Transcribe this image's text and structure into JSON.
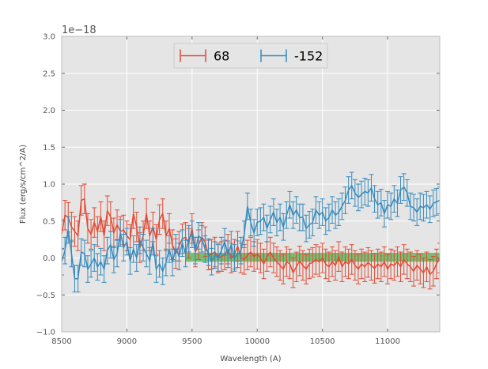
{
  "chart_data": {
    "type": "line",
    "xlabel": "Wavelength (A)",
    "ylabel": "Flux (erg/s/cm^2/A)",
    "y_offset_label": "1e−18",
    "y_scale": 1e-18,
    "xlim": [
      8500,
      11400
    ],
    "ylim": [
      -1.0,
      3.0
    ],
    "x_ticks": [
      8500,
      9000,
      9500,
      10000,
      10500,
      11000
    ],
    "x_tick_labels": [
      "8500",
      "9000",
      "9500",
      "10000",
      "10500",
      "11000"
    ],
    "y_ticks": [
      -1.0,
      -0.5,
      0.0,
      0.5,
      1.0,
      1.5,
      2.0,
      2.5,
      3.0
    ],
    "y_tick_labels": [
      "−1.0",
      "−0.5",
      "0.0",
      "0.5",
      "1.0",
      "1.5",
      "2.0",
      "2.5",
      "3.0"
    ],
    "grid": true,
    "background": "#e5e5e5",
    "legend_placement": "top-center",
    "band": {
      "x0": 9450,
      "x1": 11400,
      "y0": -0.05,
      "y1": 0.07,
      "color": "#4daf4a"
    },
    "series": [
      {
        "name": "68",
        "color": "#e24a33",
        "x": [
          8500,
          8525,
          8550,
          8575,
          8600,
          8625,
          8650,
          8675,
          8700,
          8725,
          8750,
          8775,
          8800,
          8825,
          8850,
          8875,
          8900,
          8925,
          8950,
          8975,
          9000,
          9025,
          9050,
          9075,
          9100,
          9125,
          9150,
          9175,
          9200,
          9225,
          9250,
          9275,
          9300,
          9325,
          9350,
          9375,
          9400,
          9425,
          9450,
          9475,
          9500,
          9525,
          9550,
          9575,
          9600,
          9625,
          9650,
          9675,
          9700,
          9725,
          9750,
          9775,
          9800,
          9825,
          9850,
          9875,
          9900,
          9925,
          9950,
          9975,
          10000,
          10025,
          10050,
          10075,
          10100,
          10125,
          10150,
          10175,
          10200,
          10225,
          10250,
          10275,
          10300,
          10325,
          10350,
          10375,
          10400,
          10425,
          10450,
          10475,
          10500,
          10525,
          10550,
          10575,
          10600,
          10625,
          10650,
          10675,
          10700,
          10725,
          10750,
          10775,
          10800,
          10825,
          10850,
          10875,
          10900,
          10925,
          10950,
          10975,
          11000,
          11025,
          11050,
          11075,
          11100,
          11125,
          11150,
          11175,
          11200,
          11225,
          11250,
          11275,
          11300,
          11325,
          11350,
          11375,
          11400
        ],
        "y": [
          0.32,
          0.58,
          0.55,
          0.42,
          0.36,
          0.3,
          0.78,
          0.8,
          0.4,
          0.32,
          0.48,
          0.36,
          0.56,
          0.3,
          0.64,
          0.56,
          0.34,
          0.45,
          0.36,
          0.38,
          0.3,
          0.25,
          0.6,
          0.42,
          0.14,
          0.3,
          0.6,
          0.3,
          0.42,
          0.25,
          0.52,
          0.6,
          0.3,
          0.4,
          0.18,
          0.06,
          0.16,
          0.26,
          0.28,
          0.2,
          0.4,
          0.08,
          0.18,
          0.28,
          0.22,
          0.04,
          0.05,
          0.08,
          0.0,
          0.02,
          0.04,
          0.12,
          0.0,
          0.05,
          0.16,
          0.0,
          -0.02,
          0.04,
          0.08,
          0.02,
          0.05,
          0.0,
          -0.08,
          0.02,
          0.08,
          0.0,
          -0.05,
          -0.1,
          -0.15,
          -0.05,
          -0.08,
          -0.2,
          -0.12,
          -0.04,
          -0.1,
          -0.15,
          -0.08,
          -0.06,
          -0.02,
          -0.05,
          0.0,
          -0.08,
          -0.12,
          -0.05,
          -0.1,
          0.02,
          -0.12,
          -0.05,
          -0.08,
          -0.02,
          -0.1,
          -0.15,
          -0.08,
          -0.12,
          -0.06,
          -0.1,
          -0.14,
          -0.08,
          -0.12,
          -0.05,
          -0.15,
          -0.08,
          -0.1,
          -0.05,
          -0.12,
          -0.02,
          -0.08,
          -0.12,
          -0.18,
          -0.1,
          -0.15,
          -0.2,
          -0.12,
          -0.22,
          -0.18,
          -0.08,
          0.0
        ],
        "yerr": 0.2
      },
      {
        "name": "-152",
        "color": "#348abd",
        "x": [
          8500,
          8525,
          8550,
          8575,
          8600,
          8625,
          8650,
          8675,
          8700,
          8725,
          8750,
          8775,
          8800,
          8825,
          8850,
          8875,
          8900,
          8925,
          8950,
          8975,
          9000,
          9025,
          9050,
          9075,
          9100,
          9125,
          9150,
          9175,
          9200,
          9225,
          9250,
          9275,
          9300,
          9325,
          9350,
          9375,
          9400,
          9425,
          9450,
          9475,
          9500,
          9525,
          9550,
          9575,
          9600,
          9625,
          9650,
          9675,
          9700,
          9725,
          9750,
          9775,
          9800,
          9825,
          9850,
          9875,
          9900,
          9925,
          9950,
          9975,
          10000,
          10025,
          10050,
          10075,
          10100,
          10125,
          10150,
          10175,
          10200,
          10225,
          10250,
          10275,
          10300,
          10325,
          10350,
          10375,
          10400,
          10425,
          10450,
          10475,
          10500,
          10525,
          10550,
          10575,
          10600,
          10625,
          10650,
          10675,
          10700,
          10725,
          10750,
          10775,
          10800,
          10825,
          10850,
          10875,
          10900,
          10925,
          10950,
          10975,
          11000,
          11025,
          11050,
          11075,
          11100,
          11125,
          11150,
          11175,
          11200,
          11225,
          11250,
          11275,
          11300,
          11325,
          11350,
          11375,
          11400
        ],
        "y": [
          -0.05,
          0.1,
          0.38,
          0.06,
          -0.28,
          -0.28,
          0.08,
          0.06,
          -0.15,
          -0.08,
          0.0,
          -0.12,
          -0.05,
          -0.15,
          0.1,
          0.18,
          -0.02,
          0.06,
          0.34,
          0.14,
          0.22,
          -0.04,
          0.12,
          0.0,
          0.24,
          0.14,
          0.06,
          -0.04,
          0.22,
          -0.15,
          -0.08,
          -0.18,
          -0.06,
          0.12,
          -0.06,
          0.14,
          0.02,
          0.2,
          0.06,
          0.26,
          0.32,
          0.1,
          0.3,
          0.26,
          0.12,
          0.08,
          -0.05,
          0.04,
          0.0,
          0.1,
          0.22,
          0.05,
          0.18,
          0.0,
          0.05,
          0.1,
          0.32,
          0.7,
          0.48,
          0.34,
          0.48,
          0.5,
          0.55,
          0.4,
          0.52,
          0.62,
          0.48,
          0.55,
          0.42,
          0.58,
          0.72,
          0.58,
          0.65,
          0.55,
          0.55,
          0.4,
          0.45,
          0.48,
          0.65,
          0.58,
          0.62,
          0.5,
          0.55,
          0.65,
          0.58,
          0.62,
          0.7,
          0.78,
          0.92,
          0.98,
          0.88,
          0.82,
          0.86,
          0.9,
          0.88,
          0.95,
          0.8,
          0.72,
          0.75,
          0.6,
          0.72,
          0.7,
          0.8,
          0.74,
          0.92,
          0.96,
          0.88,
          0.7,
          0.68,
          0.62,
          0.7,
          0.68,
          0.72,
          0.66,
          0.74,
          0.76,
          0.78
        ],
        "yerr": 0.18
      }
    ]
  }
}
